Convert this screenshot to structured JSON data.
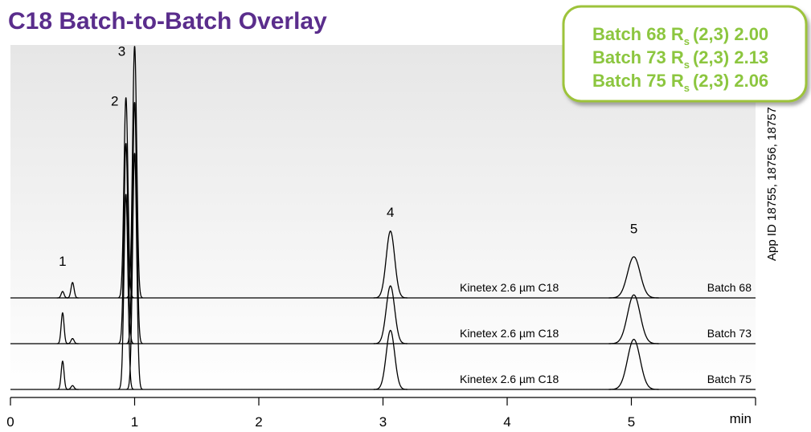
{
  "chart_data": {
    "type": "chromatogram",
    "title": "C18 Batch-to-Batch Overlay",
    "xlabel": "min",
    "xlim": [
      0,
      6
    ],
    "xticks": [
      0,
      1,
      2,
      3,
      4,
      5
    ],
    "ylim": [
      0,
      100
    ],
    "side_note": "App ID 18755, 18756, 18757",
    "peak_labels": [
      "1",
      "2",
      "3",
      "4",
      "5"
    ],
    "peak_label_times": [
      0.42,
      0.93,
      1.0,
      3.06,
      5.02
    ],
    "series": [
      {
        "name": "Batch 68",
        "column": "Kinetex 2.6 µm C18",
        "color": "#000000",
        "times": [
          0.42,
          0.5,
          0.93,
          1.0,
          3.06,
          5.02
        ],
        "values": [
          2.5,
          6,
          78,
          98,
          26,
          16
        ]
      },
      {
        "name": "Batch 73",
        "column": "Kinetex 2.6 µm C18",
        "color": "#000000",
        "times": [
          0.42,
          0.5,
          0.93,
          1.0,
          3.06,
          5.02
        ],
        "values": [
          12,
          2,
          78,
          94,
          22.5,
          19
        ]
      },
      {
        "name": "Batch 75",
        "column": "Kinetex 2.6 µm C18",
        "color": "#000000",
        "times": [
          0.42,
          0.5,
          0.93,
          1.0,
          3.06,
          5.02
        ],
        "values": [
          11,
          1.5,
          76,
          92,
          23,
          19.5
        ]
      }
    ],
    "resolution": {
      "symbol": "R",
      "subscript": "s",
      "pair": "(2,3)",
      "batches": [
        "Batch 68",
        "Batch 73",
        "Batch 75"
      ],
      "values": [
        2.0,
        2.13,
        2.06
      ],
      "value_labels": [
        "2.00",
        "2.13",
        "2.06"
      ],
      "color": "#8cc63f"
    }
  }
}
